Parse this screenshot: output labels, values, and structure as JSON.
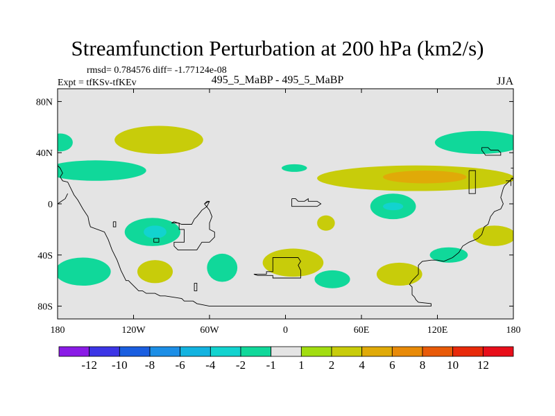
{
  "chart_data": {
    "type": "contour-map",
    "title": "Streamfunction Perturbation at 200 hPa (km2/s)",
    "stats_text": "rmsd= 0.784576 diff= -1.77124e-08",
    "experiment_label": "Expt = tfKSv-tfKEv",
    "center_label": "495_5_MaBP - 495_5_MaBP",
    "season_label": "JJA",
    "x_axis": {
      "range": [
        -180,
        180
      ],
      "ticks": [
        {
          "value": -180,
          "label": "180"
        },
        {
          "value": -120,
          "label": "120W"
        },
        {
          "value": -60,
          "label": "60W"
        },
        {
          "value": 0,
          "label": "0"
        },
        {
          "value": 60,
          "label": "60E"
        },
        {
          "value": 120,
          "label": "120E"
        },
        {
          "value": 180,
          "label": "180"
        }
      ]
    },
    "y_axis": {
      "range": [
        -90,
        90
      ],
      "ticks": [
        {
          "value": 80,
          "label": "80N"
        },
        {
          "value": 40,
          "label": "40N"
        },
        {
          "value": 0,
          "label": "0"
        },
        {
          "value": -40,
          "label": "40S"
        },
        {
          "value": -80,
          "label": "80S"
        }
      ]
    },
    "colorbar": {
      "colors": [
        "#8a1be6",
        "#3c35e6",
        "#1a5ee0",
        "#1c8ee6",
        "#13b3e0",
        "#12d3cf",
        "#10d89a",
        "#e4e4e4",
        "#a2dd10",
        "#c8cc0a",
        "#e0aa08",
        "#e88a08",
        "#e85a08",
        "#e82a0a",
        "#e80e1a"
      ],
      "labels": [
        "-12",
        "-10",
        "-8",
        "-6",
        "-4",
        "-2",
        "-1",
        "1",
        "2",
        "4",
        "6",
        "8",
        "10",
        "12"
      ]
    },
    "anomaly_features": [
      {
        "level": "2",
        "lon": -100,
        "lat": 50,
        "rx": 35,
        "ry": 11
      },
      {
        "level": "-1",
        "lon": -150,
        "lat": 26,
        "rx": 40,
        "ry": 8
      },
      {
        "level": "-1",
        "lon": -178,
        "lat": 48,
        "rx": 10,
        "ry": 7
      },
      {
        "level": "-1",
        "lon": -105,
        "lat": -22,
        "rx": 22,
        "ry": 11
      },
      {
        "level": "-2",
        "lon": -103,
        "lat": -22,
        "rx": 9,
        "ry": 5
      },
      {
        "level": "-1",
        "lon": -160,
        "lat": -53,
        "rx": 22,
        "ry": 11
      },
      {
        "level": "2",
        "lon": -103,
        "lat": -53,
        "rx": 14,
        "ry": 9
      },
      {
        "level": "-1",
        "lon": -50,
        "lat": -50,
        "rx": 12,
        "ry": 11
      },
      {
        "level": "-1",
        "lon": 7,
        "lat": 28,
        "rx": 10,
        "ry": 3
      },
      {
        "level": "2",
        "lon": 6,
        "lat": -46,
        "rx": 24,
        "ry": 11
      },
      {
        "level": "2",
        "lon": 32,
        "lat": -15,
        "rx": 7,
        "ry": 6
      },
      {
        "level": "-1",
        "lon": 37,
        "lat": -59,
        "rx": 14,
        "ry": 7
      },
      {
        "level": "-1",
        "lon": 85,
        "lat": -2,
        "rx": 18,
        "ry": 10
      },
      {
        "level": "-2",
        "lon": 85,
        "lat": -2,
        "rx": 8,
        "ry": 3
      },
      {
        "level": "2",
        "lon": 103,
        "lat": 20,
        "rx": 78,
        "ry": 10
      },
      {
        "level": "4",
        "lon": 110,
        "lat": 21,
        "rx": 33,
        "ry": 5
      },
      {
        "level": "-1",
        "lon": 153,
        "lat": 48,
        "rx": 35,
        "ry": 9
      },
      {
        "level": "2",
        "lon": 165,
        "lat": -25,
        "rx": 17,
        "ry": 8
      },
      {
        "level": "-1",
        "lon": 129,
        "lat": -40,
        "rx": 15,
        "ry": 6
      },
      {
        "level": "2",
        "lon": 90,
        "lat": -55,
        "rx": 18,
        "ry": 9
      }
    ],
    "coastlines": [
      [
        [
          -180,
          30
        ],
        [
          -178,
          28
        ],
        [
          -176,
          24
        ],
        [
          -178,
          21
        ],
        [
          -176,
          18
        ],
        [
          -172,
          17
        ],
        [
          -167,
          7
        ],
        [
          -164,
          3
        ],
        [
          -160,
          -4
        ],
        [
          -156,
          -10
        ],
        [
          -155,
          -15
        ],
        [
          -154,
          -18
        ],
        [
          -143,
          -22
        ],
        [
          -140,
          -28
        ],
        [
          -137,
          -36
        ],
        [
          -133,
          -44
        ],
        [
          -130,
          -52
        ],
        [
          -126,
          -60
        ],
        [
          -124,
          -60
        ],
        [
          -122,
          -62
        ],
        [
          -118,
          -66
        ],
        [
          -116,
          -68
        ],
        [
          -113,
          -68
        ],
        [
          -110,
          -70
        ],
        [
          -103,
          -70
        ],
        [
          -99,
          -72
        ],
        [
          -95,
          -72
        ],
        [
          -82,
          -74
        ],
        [
          -80,
          -76
        ],
        [
          -75,
          -76
        ],
        [
          -73,
          -76
        ],
        [
          -70,
          -78
        ],
        [
          -60,
          -80
        ],
        [
          -40,
          -80
        ],
        [
          -20,
          -80
        ],
        [
          0,
          -80
        ],
        [
          20,
          -80
        ],
        [
          50,
          -80
        ],
        [
          80,
          -80
        ],
        [
          110,
          -80
        ],
        [
          115,
          -80
        ],
        [
          115,
          -78
        ],
        [
          105,
          -77
        ],
        [
          103,
          -75
        ],
        [
          102,
          -73
        ],
        [
          100,
          -71
        ],
        [
          100,
          -65
        ],
        [
          98,
          -63
        ],
        [
          100,
          -60
        ],
        [
          105,
          -55
        ],
        [
          105,
          -48
        ],
        [
          108,
          -45
        ],
        [
          115,
          -44
        ],
        [
          120,
          -44
        ],
        [
          125,
          -45
        ],
        [
          132,
          -42
        ],
        [
          137,
          -38
        ],
        [
          140,
          -33
        ],
        [
          145,
          -30
        ],
        [
          150,
          -28
        ],
        [
          152,
          -27
        ],
        [
          155,
          -24
        ],
        [
          157,
          -18
        ],
        [
          160,
          -16
        ],
        [
          162,
          -10
        ],
        [
          165,
          -6
        ],
        [
          170,
          -4
        ],
        [
          172,
          0
        ],
        [
          170,
          5
        ],
        [
          172,
          12
        ],
        [
          173,
          14
        ],
        [
          175,
          16
        ],
        [
          178,
          19
        ],
        [
          180,
          20
        ]
      ],
      [
        [
          -180,
          0
        ],
        [
          -177,
          2
        ],
        [
          -174,
          4
        ],
        [
          -172,
          8
        ]
      ],
      [
        [
          -136,
          -14
        ],
        [
          -134,
          -14
        ],
        [
          -134,
          -18
        ],
        [
          -136,
          -18
        ],
        [
          -136,
          -14
        ]
      ],
      [
        [
          -90,
          -15
        ],
        [
          -84,
          -15
        ],
        [
          -84,
          -20
        ],
        [
          -80,
          -20
        ],
        [
          -80,
          -30
        ],
        [
          -88,
          -30
        ],
        [
          -88,
          -33
        ],
        [
          -85,
          -36
        ],
        [
          -77,
          -36
        ],
        [
          -70,
          -36
        ],
        [
          -66,
          -30
        ],
        [
          -60,
          -30
        ],
        [
          -56,
          -26
        ],
        [
          -56,
          -22
        ],
        [
          -60,
          -20
        ],
        [
          -60,
          -15
        ],
        [
          -58,
          -10
        ],
        [
          -60,
          -5
        ],
        [
          -64,
          0
        ],
        [
          -62,
          2
        ],
        [
          -60,
          2
        ],
        [
          -64,
          0
        ]
      ],
      [
        [
          -104,
          -27
        ],
        [
          -100,
          -27
        ],
        [
          -100,
          -30
        ],
        [
          -104,
          -30
        ],
        [
          -104,
          -27
        ]
      ],
      [
        [
          -60,
          2
        ],
        [
          -62,
          -2
        ],
        [
          -66,
          -5
        ],
        [
          -70,
          -10
        ],
        [
          -72,
          -12
        ],
        [
          -74,
          -16
        ],
        [
          -82,
          -16
        ],
        [
          -88,
          -14
        ],
        [
          -90,
          -15
        ]
      ],
      [
        [
          -72,
          -62
        ],
        [
          -70,
          -62
        ],
        [
          -70,
          -68
        ],
        [
          -72,
          -68
        ],
        [
          -72,
          -62
        ]
      ],
      [
        [
          5,
          4
        ],
        [
          8,
          4
        ],
        [
          10,
          2
        ],
        [
          15,
          2
        ],
        [
          18,
          4
        ],
        [
          18,
          2
        ],
        [
          25,
          2
        ],
        [
          28,
          0
        ],
        [
          25,
          -2
        ],
        [
          18,
          -2
        ],
        [
          10,
          -2
        ],
        [
          5,
          -2
        ],
        [
          5,
          4
        ]
      ],
      [
        [
          -25,
          -55
        ],
        [
          -15,
          -55
        ],
        [
          -15,
          -53
        ],
        [
          -10,
          -53
        ],
        [
          -10,
          -42
        ],
        [
          10,
          -42
        ],
        [
          12,
          -45
        ],
        [
          10,
          -48
        ],
        [
          12,
          -52
        ],
        [
          12,
          -58
        ],
        [
          -10,
          -58
        ],
        [
          -10,
          -56
        ],
        [
          -22,
          -56
        ],
        [
          -25,
          -55
        ]
      ],
      [
        [
          145,
          26
        ],
        [
          150,
          26
        ],
        [
          150,
          8
        ],
        [
          145,
          8
        ],
        [
          145,
          26
        ]
      ],
      [
        [
          155,
          44
        ],
        [
          160,
          44
        ],
        [
          162,
          42
        ],
        [
          168,
          42
        ],
        [
          170,
          40
        ],
        [
          170,
          38
        ],
        [
          158,
          38
        ],
        [
          155,
          42
        ],
        [
          155,
          44
        ]
      ],
      [
        [
          178,
          28
        ],
        [
          180,
          28
        ]
      ],
      [
        [
          178,
          20
        ],
        [
          180,
          20
        ]
      ],
      [
        [
          174,
          18
        ],
        [
          178,
          18
        ],
        [
          178,
          14
        ]
      ]
    ]
  }
}
